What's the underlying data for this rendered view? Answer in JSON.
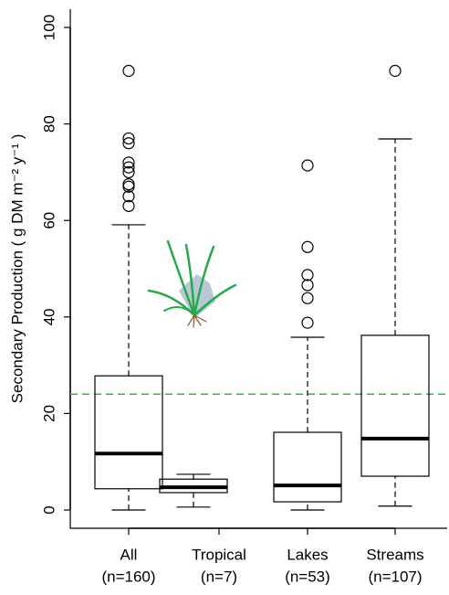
{
  "chart_data": {
    "type": "box",
    "ylabel": "Secondary Production ( g DM m⁻² y⁻¹ )",
    "categories": [
      "All",
      "Tropical",
      "Lakes",
      "Streams"
    ],
    "n_labels": [
      "(n=160)",
      "(n=7)",
      "(n=53)",
      "(n=107)"
    ],
    "boxes": [
      {
        "whisker_low": 0,
        "q1": 4.4,
        "median": 11.7,
        "q3": 27.8,
        "whisker_high": 59.1,
        "outliers": [
          91,
          77,
          76,
          72,
          71,
          70,
          67.5,
          67,
          65,
          63
        ]
      },
      {
        "whisker_low": 0.6,
        "q1": 3.6,
        "median": 4.7,
        "q3": 6.4,
        "whisker_high": 7.4,
        "outliers": []
      },
      {
        "whisker_low": 0,
        "q1": 1.7,
        "median": 5.1,
        "q3": 16.1,
        "whisker_high": 35.8,
        "outliers": [
          38.8,
          43.9,
          46.6,
          48.7,
          54.5,
          71.4
        ]
      },
      {
        "whisker_low": 0.8,
        "q1": 7,
        "median": 14.8,
        "q3": 36.2,
        "whisker_high": 76.9,
        "outliers": [
          91
        ]
      }
    ],
    "reference_line": {
      "value": 24,
      "color": "#3cb44b"
    },
    "color": "#000000",
    "ylim": [
      0,
      100
    ],
    "yticks": [
      0,
      20,
      40,
      60,
      80,
      100
    ]
  }
}
